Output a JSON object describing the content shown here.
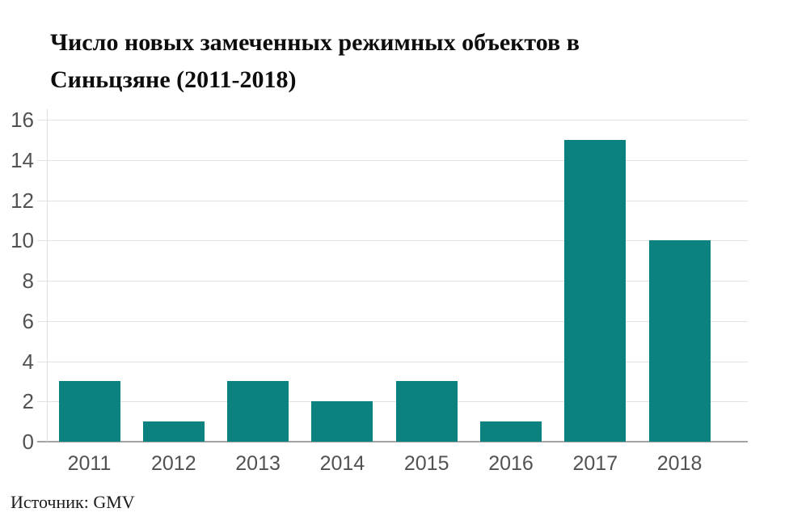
{
  "title_lines": [
    "Число новых замеченных режимных объектов в",
    "Синьцзяне (2011-2018)"
  ],
  "source": {
    "text": "Источник: GMV"
  },
  "colors": {
    "bar": "#0b8180",
    "gridline": "#e3e3e3",
    "axis_baseline": "#a3a3a3",
    "y_axis_line": "#dedede",
    "tick_label": "#525254",
    "title": "#0d0d0d"
  },
  "chart_data": {
    "type": "bar",
    "title": "Число новых замеченных режимных объектов в Синьцзяне (2011-2018)",
    "categories": [
      "2011",
      "2012",
      "2013",
      "2014",
      "2015",
      "2016",
      "2017",
      "2018"
    ],
    "values": [
      3,
      1,
      3,
      2,
      3,
      1,
      15,
      10
    ],
    "xlabel": "",
    "ylabel": "",
    "ylim": [
      0,
      16
    ],
    "ytick_step": 2,
    "yticks": [
      0,
      2,
      4,
      6,
      8,
      10,
      12,
      14,
      16
    ],
    "grid": "horizontal",
    "legend": "none",
    "bar_color": "#0b8180",
    "source": "Источник: GMV"
  }
}
